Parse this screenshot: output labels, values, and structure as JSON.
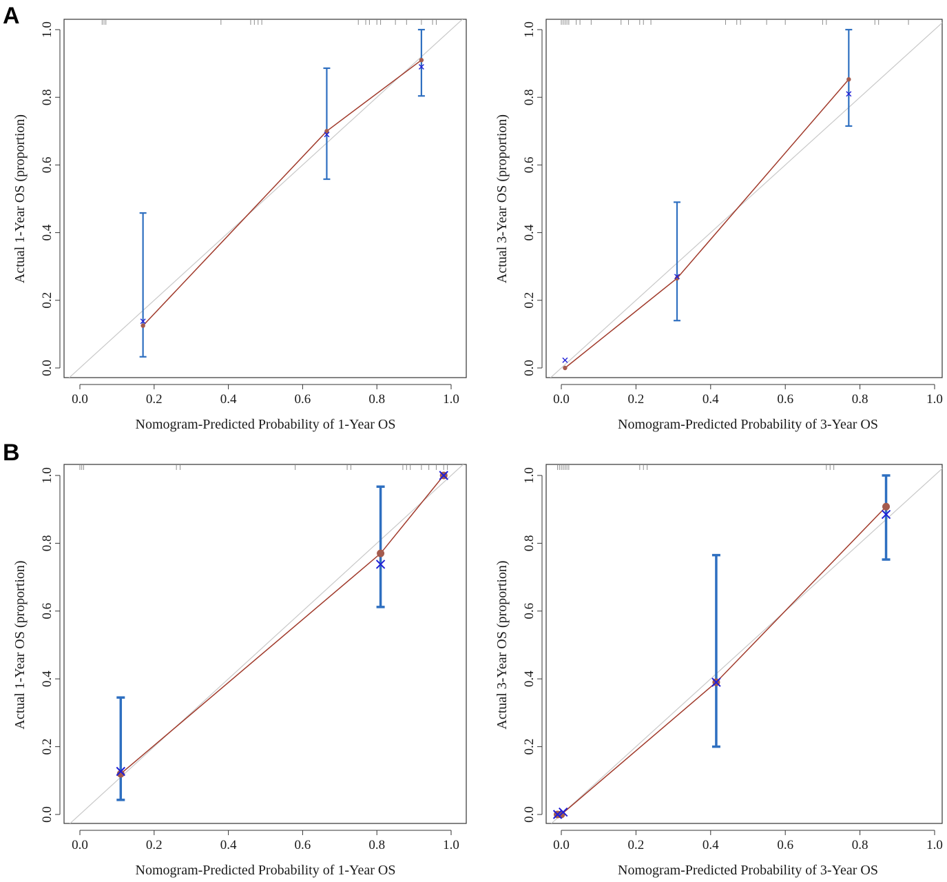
{
  "panel_labels": [
    "A",
    "B"
  ],
  "chart_data": [
    {
      "type": "line",
      "panel": "A",
      "xlabel": "Nomogram-Predicted Probability of 1-Year OS",
      "ylabel": "Actual 1-Year OS (proportion)",
      "xlim": [
        0.0,
        1.0
      ],
      "ylim": [
        0.0,
        1.0
      ],
      "xticks": [
        "0.0",
        "0.2",
        "0.4",
        "0.6",
        "0.8",
        "1.0"
      ],
      "yticks": [
        "0.0",
        "0.2",
        "0.4",
        "0.6",
        "0.8",
        "1.0"
      ],
      "grid": false,
      "reference_line": true,
      "observed": {
        "x": [
          0.17,
          0.665,
          0.92
        ],
        "y": [
          0.125,
          0.7,
          0.91
        ]
      },
      "bias_corrected": {
        "x": [
          0.17,
          0.665,
          0.92
        ],
        "y": [
          0.138,
          0.69,
          0.89
        ]
      },
      "ci": {
        "x": [
          0.17,
          0.665,
          0.92
        ],
        "lower": [
          0.033,
          0.558,
          0.804
        ],
        "upper": [
          0.458,
          0.886,
          1.0
        ]
      },
      "rug": [
        0.06,
        0.065,
        0.07,
        0.38,
        0.46,
        0.47,
        0.48,
        0.49,
        0.75,
        0.77,
        0.78,
        0.8,
        0.81,
        0.85,
        0.88,
        0.92,
        0.95,
        0.96
      ],
      "colors": {
        "calibration": "#a0392a",
        "ci": "#2e6fc0",
        "cross": "#1f1fd6",
        "reference": "#c8c8c8"
      }
    },
    {
      "type": "line",
      "panel": "A",
      "xlabel": "Nomogram-Predicted Probability of 3-Year OS",
      "ylabel": "Actual 3-Year OS (proportion)",
      "xlim": [
        0.0,
        1.0
      ],
      "ylim": [
        0.0,
        1.0
      ],
      "xticks": [
        "0.0",
        "0.2",
        "0.4",
        "0.6",
        "0.8",
        "1.0"
      ],
      "yticks": [
        "0.0",
        "0.2",
        "0.4",
        "0.6",
        "0.8",
        "1.0"
      ],
      "grid": false,
      "reference_line": true,
      "observed": {
        "x": [
          0.01,
          0.31,
          0.77
        ],
        "y": [
          0.0,
          0.265,
          0.853
        ]
      },
      "bias_corrected": {
        "x": [
          0.01,
          0.31,
          0.77
        ],
        "y": [
          0.023,
          0.27,
          0.81
        ]
      },
      "ci": {
        "x": [
          0.31,
          0.77
        ],
        "lower": [
          0.14,
          0.715
        ],
        "upper": [
          0.49,
          1.0
        ]
      },
      "rug": [
        0.0,
        0.005,
        0.01,
        0.015,
        0.02,
        0.04,
        0.05,
        0.08,
        0.16,
        0.18,
        0.21,
        0.22,
        0.24,
        0.44,
        0.47,
        0.48,
        0.55,
        0.6,
        0.7,
        0.71,
        0.84,
        0.85,
        0.93
      ],
      "colors": {
        "calibration": "#a0392a",
        "ci": "#2e6fc0",
        "cross": "#1f1fd6",
        "reference": "#c8c8c8"
      }
    },
    {
      "type": "line",
      "panel": "B",
      "xlabel": "Nomogram-Predicted Probability of 1-Year OS",
      "ylabel": "Actual 1-Year OS (proportion)",
      "xlim": [
        0.0,
        1.0
      ],
      "ylim": [
        0.0,
        1.0
      ],
      "xticks": [
        "0.0",
        "0.2",
        "0.4",
        "0.6",
        "0.8",
        "1.0"
      ],
      "yticks": [
        "0.0",
        "0.2",
        "0.4",
        "0.6",
        "0.8",
        "1.0"
      ],
      "grid": false,
      "reference_line": true,
      "observed": {
        "x": [
          0.11,
          0.81,
          0.98
        ],
        "y": [
          0.12,
          0.77,
          1.0
        ]
      },
      "bias_corrected": {
        "x": [
          0.11,
          0.81,
          0.98
        ],
        "y": [
          0.127,
          0.738,
          1.0
        ]
      },
      "ci": {
        "x": [
          0.11,
          0.81
        ],
        "lower": [
          0.043,
          0.612
        ],
        "upper": [
          0.345,
          0.967
        ]
      },
      "rug": [
        0.0,
        0.005,
        0.01,
        0.26,
        0.27,
        0.58,
        0.72,
        0.73,
        0.87,
        0.88,
        0.89,
        0.92,
        0.94,
        0.96,
        0.98,
        0.99
      ],
      "colors": {
        "calibration": "#a0392a",
        "ci": "#2e6fc0",
        "cross": "#1f1fd6",
        "reference": "#c8c8c8"
      }
    },
    {
      "type": "line",
      "panel": "B",
      "xlabel": "Nomogram-Predicted Probability of 3-Year OS",
      "ylabel": "Actual 3-Year OS (proportion)",
      "xlim": [
        0.0,
        1.0
      ],
      "ylim": [
        0.0,
        1.0
      ],
      "xticks": [
        "0.0",
        "0.2",
        "0.4",
        "0.6",
        "0.8",
        "1.0"
      ],
      "yticks": [
        "0.0",
        "0.2",
        "0.4",
        "0.6",
        "0.8",
        "1.0"
      ],
      "grid": false,
      "reference_line": true,
      "observed": {
        "x": [
          -0.01,
          0.0,
          0.415,
          0.87
        ],
        "y": [
          0.0,
          0.0,
          0.39,
          0.908
        ]
      },
      "bias_corrected": {
        "x": [
          -0.01,
          0.005,
          0.415,
          0.87
        ],
        "y": [
          0.0,
          0.007,
          0.39,
          0.885
        ]
      },
      "ci": {
        "x": [
          0.415,
          0.87
        ],
        "lower": [
          0.2,
          0.752
        ],
        "upper": [
          0.765,
          1.0
        ]
      },
      "rug": [
        -0.01,
        -0.005,
        0.0,
        0.005,
        0.01,
        0.015,
        0.02,
        0.21,
        0.22,
        0.23,
        0.71,
        0.72,
        0.73
      ],
      "colors": {
        "calibration": "#a0392a",
        "ci": "#2e6fc0",
        "cross": "#1f1fd6",
        "reference": "#c8c8c8"
      }
    }
  ]
}
